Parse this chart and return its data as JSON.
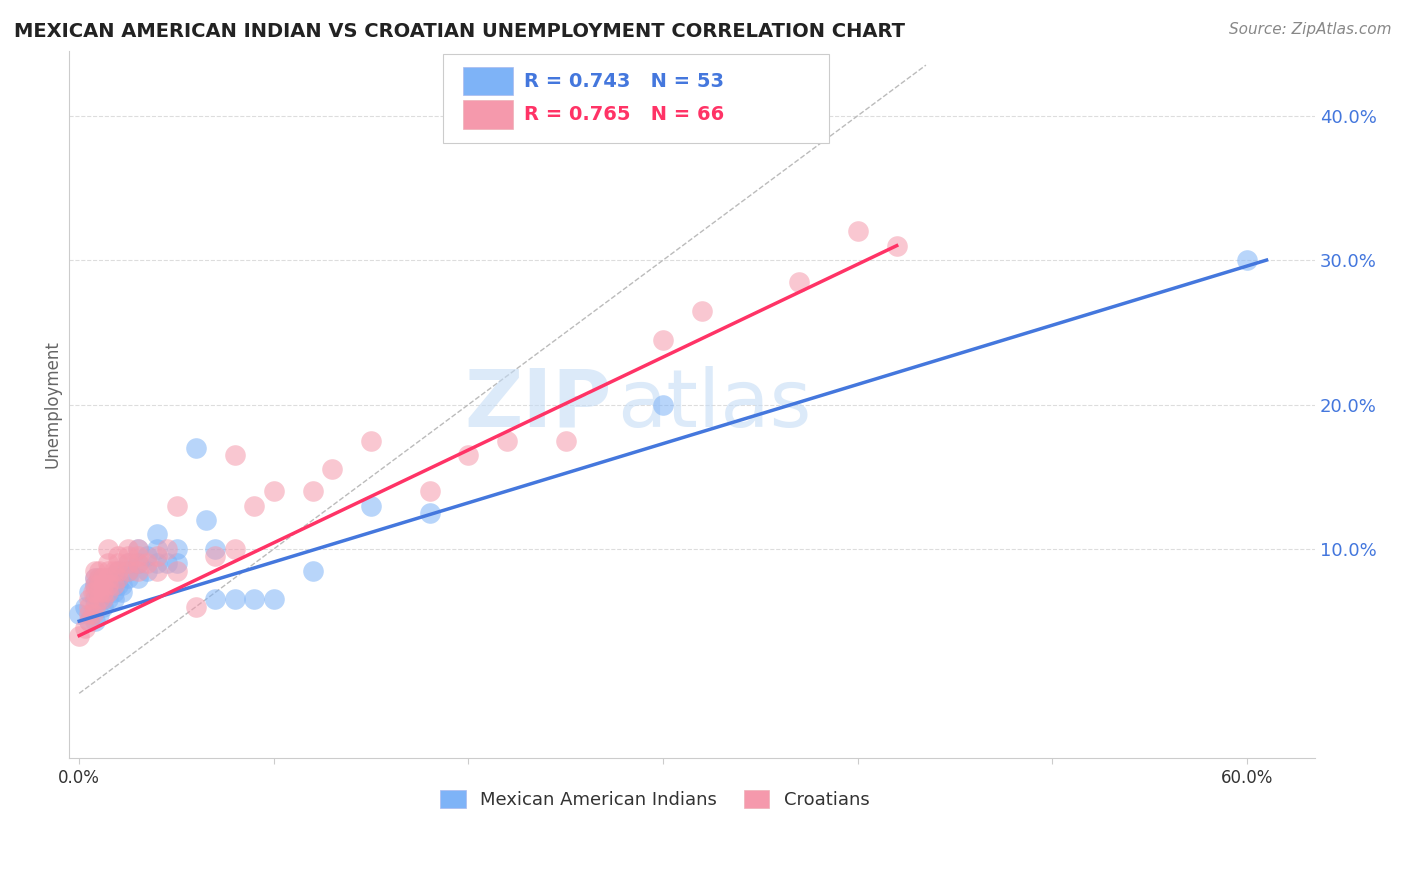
{
  "title": "MEXICAN AMERICAN INDIAN VS CROATIAN UNEMPLOYMENT CORRELATION CHART",
  "source": "Source: ZipAtlas.com",
  "ylabel": "Unemployment",
  "watermark_zip": "ZIP",
  "watermark_atlas": "atlas",
  "blue_R": 0.743,
  "blue_N": 53,
  "pink_R": 0.765,
  "pink_N": 66,
  "yticks": [
    0.0,
    0.1,
    0.2,
    0.3,
    0.4
  ],
  "ytick_labels": [
    "",
    "10.0%",
    "20.0%",
    "30.0%",
    "40.0%"
  ],
  "xtick_labels": [
    "0.0%",
    "",
    "",
    "",
    "",
    "",
    "60.0%"
  ],
  "xticks": [
    0.0,
    0.1,
    0.2,
    0.3,
    0.4,
    0.5,
    0.6
  ],
  "xlim": [
    -0.005,
    0.635
  ],
  "ylim": [
    -0.045,
    0.445
  ],
  "blue_color": "#7EB3F7",
  "pink_color": "#F599AC",
  "blue_line_color": "#4477DD",
  "pink_line_color": "#FF3366",
  "diag_line_color": "#BBBBBB",
  "legend_blue_label": "Mexican American Indians",
  "legend_pink_label": "Croatians",
  "blue_scatter": [
    [
      0.0,
      0.055
    ],
    [
      0.003,
      0.06
    ],
    [
      0.005,
      0.05
    ],
    [
      0.005,
      0.07
    ],
    [
      0.008,
      0.05
    ],
    [
      0.008,
      0.065
    ],
    [
      0.008,
      0.075
    ],
    [
      0.008,
      0.08
    ],
    [
      0.01,
      0.055
    ],
    [
      0.01,
      0.065
    ],
    [
      0.01,
      0.07
    ],
    [
      0.01,
      0.075
    ],
    [
      0.01,
      0.08
    ],
    [
      0.012,
      0.06
    ],
    [
      0.012,
      0.065
    ],
    [
      0.012,
      0.07
    ],
    [
      0.015,
      0.065
    ],
    [
      0.015,
      0.07
    ],
    [
      0.015,
      0.075
    ],
    [
      0.015,
      0.08
    ],
    [
      0.018,
      0.065
    ],
    [
      0.018,
      0.07
    ],
    [
      0.02,
      0.075
    ],
    [
      0.02,
      0.08
    ],
    [
      0.02,
      0.085
    ],
    [
      0.022,
      0.07
    ],
    [
      0.022,
      0.075
    ],
    [
      0.025,
      0.08
    ],
    [
      0.025,
      0.085
    ],
    [
      0.025,
      0.09
    ],
    [
      0.03,
      0.08
    ],
    [
      0.03,
      0.09
    ],
    [
      0.03,
      0.1
    ],
    [
      0.035,
      0.085
    ],
    [
      0.035,
      0.095
    ],
    [
      0.04,
      0.09
    ],
    [
      0.04,
      0.1
    ],
    [
      0.04,
      0.11
    ],
    [
      0.045,
      0.09
    ],
    [
      0.05,
      0.09
    ],
    [
      0.05,
      0.1
    ],
    [
      0.06,
      0.17
    ],
    [
      0.065,
      0.12
    ],
    [
      0.07,
      0.1
    ],
    [
      0.07,
      0.065
    ],
    [
      0.08,
      0.065
    ],
    [
      0.09,
      0.065
    ],
    [
      0.1,
      0.065
    ],
    [
      0.12,
      0.085
    ],
    [
      0.15,
      0.13
    ],
    [
      0.18,
      0.125
    ],
    [
      0.3,
      0.2
    ],
    [
      0.6,
      0.3
    ]
  ],
  "pink_scatter": [
    [
      0.0,
      0.04
    ],
    [
      0.003,
      0.045
    ],
    [
      0.005,
      0.05
    ],
    [
      0.005,
      0.055
    ],
    [
      0.005,
      0.06
    ],
    [
      0.005,
      0.065
    ],
    [
      0.007,
      0.055
    ],
    [
      0.007,
      0.07
    ],
    [
      0.008,
      0.06
    ],
    [
      0.008,
      0.07
    ],
    [
      0.008,
      0.075
    ],
    [
      0.008,
      0.08
    ],
    [
      0.008,
      0.085
    ],
    [
      0.01,
      0.065
    ],
    [
      0.01,
      0.07
    ],
    [
      0.01,
      0.075
    ],
    [
      0.01,
      0.08
    ],
    [
      0.01,
      0.085
    ],
    [
      0.012,
      0.065
    ],
    [
      0.012,
      0.07
    ],
    [
      0.012,
      0.075
    ],
    [
      0.012,
      0.08
    ],
    [
      0.015,
      0.07
    ],
    [
      0.015,
      0.075
    ],
    [
      0.015,
      0.08
    ],
    [
      0.015,
      0.085
    ],
    [
      0.015,
      0.09
    ],
    [
      0.015,
      0.1
    ],
    [
      0.018,
      0.075
    ],
    [
      0.018,
      0.085
    ],
    [
      0.02,
      0.08
    ],
    [
      0.02,
      0.085
    ],
    [
      0.02,
      0.09
    ],
    [
      0.02,
      0.095
    ],
    [
      0.025,
      0.085
    ],
    [
      0.025,
      0.09
    ],
    [
      0.025,
      0.095
    ],
    [
      0.025,
      0.1
    ],
    [
      0.03,
      0.085
    ],
    [
      0.03,
      0.09
    ],
    [
      0.03,
      0.095
    ],
    [
      0.03,
      0.1
    ],
    [
      0.035,
      0.09
    ],
    [
      0.04,
      0.085
    ],
    [
      0.04,
      0.095
    ],
    [
      0.045,
      0.1
    ],
    [
      0.05,
      0.085
    ],
    [
      0.05,
      0.13
    ],
    [
      0.06,
      0.06
    ],
    [
      0.07,
      0.095
    ],
    [
      0.08,
      0.1
    ],
    [
      0.08,
      0.165
    ],
    [
      0.09,
      0.13
    ],
    [
      0.1,
      0.14
    ],
    [
      0.12,
      0.14
    ],
    [
      0.13,
      0.155
    ],
    [
      0.15,
      0.175
    ],
    [
      0.18,
      0.14
    ],
    [
      0.2,
      0.165
    ],
    [
      0.22,
      0.175
    ],
    [
      0.25,
      0.175
    ],
    [
      0.3,
      0.245
    ],
    [
      0.32,
      0.265
    ],
    [
      0.37,
      0.285
    ],
    [
      0.4,
      0.32
    ],
    [
      0.42,
      0.31
    ]
  ],
  "blue_line_x": [
    0.0,
    0.61
  ],
  "blue_line_y": [
    0.05,
    0.3
  ],
  "pink_line_x": [
    0.0,
    0.42
  ],
  "pink_line_y": [
    0.04,
    0.31
  ],
  "diag_line_x": [
    0.0,
    0.435
  ],
  "diag_line_y": [
    0.0,
    0.435
  ],
  "hgrid_color": "#DDDDDD",
  "title_fontsize": 14,
  "source_fontsize": 11,
  "ylabel_fontsize": 12,
  "ytick_fontsize": 13,
  "xtick_fontsize": 12,
  "legend_fontsize": 14,
  "watermark_fontsize_zip": 58,
  "watermark_fontsize_atlas": 58,
  "watermark_color": "#C5DCF5",
  "watermark_alpha": 0.6
}
